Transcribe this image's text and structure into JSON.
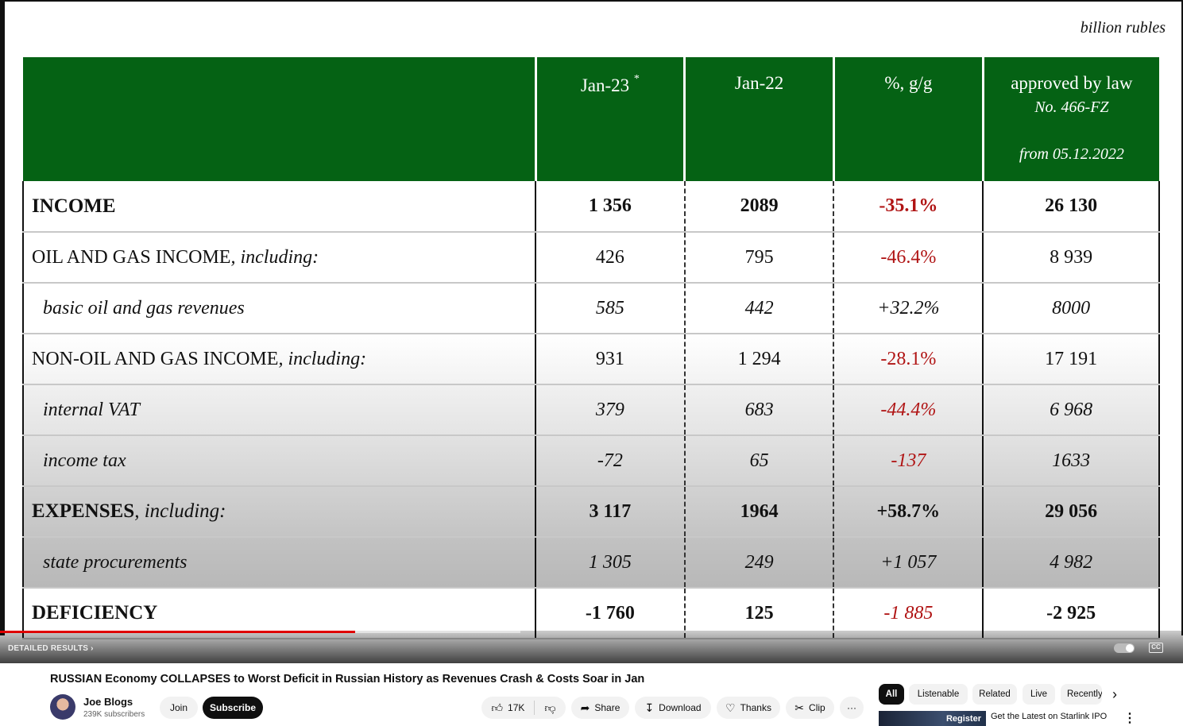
{
  "slide": {
    "units": "billion rubles",
    "headers": {
      "jan23": "Jan-23",
      "jan23_mark": "*",
      "jan22": "Jan-22",
      "pct": "%, g/g",
      "law": "approved by law",
      "law_no": "No. 466-FZ",
      "law_date": "from 05.12.2022"
    },
    "rows": [
      {
        "label": "INCOME",
        "suffix": "",
        "jan23": "1 356",
        "jan22": "2089",
        "pct": "-35.1%",
        "law": "26 130"
      },
      {
        "label": "OIL AND GAS INCOME",
        "suffix": ", including:",
        "jan23": "426",
        "jan22": "795",
        "pct": "-46.4%",
        "law": "8 939"
      },
      {
        "label": "basic oil and gas revenues",
        "suffix": "",
        "jan23": "585",
        "jan22": "442",
        "pct": "+32.2%",
        "law": "8000"
      },
      {
        "label": "NON-OIL AND GAS INCOME",
        "suffix": ", including:",
        "jan23": "931",
        "jan22": "1 294",
        "pct": "-28.1%",
        "law": "17 191"
      },
      {
        "label": "internal VAT",
        "suffix": "",
        "jan23": "379",
        "jan22": "683",
        "pct": "-44.4%",
        "law": "6 968"
      },
      {
        "label": "income tax",
        "suffix": "",
        "jan23": "-72",
        "jan22": "65",
        "pct": "-137",
        "law": "1633"
      },
      {
        "label": "EXPENSES",
        "suffix": ", including:",
        "jan23": "3 117",
        "jan22": "1964",
        "pct": "+58.7%",
        "law": "29 056"
      },
      {
        "label": "state procurements",
        "suffix": "",
        "jan23": "1 305",
        "jan22": "249",
        "pct": "+1 057",
        "law": "4 982"
      },
      {
        "label": "DEFICIENCY",
        "suffix": "",
        "jan23": "-1 760",
        "jan22": "125",
        "pct": "-1 885",
        "law": "-2 925"
      }
    ]
  },
  "player": {
    "detailed_results": "DETAILED RESULTS",
    "progress_fraction": 0.3,
    "buffered_fraction": 0.44,
    "cc_label": "CC"
  },
  "video": {
    "title": "RUSSIAN Economy COLLAPSES to Worst Deficit in Russian History as Revenues Crash & Costs Soar in Jan",
    "channel": "Joe Blogs",
    "subscribers": "239K subscribers",
    "join": "Join",
    "subscribe": "Subscribe",
    "likes": "17K",
    "share": "Share",
    "download": "Download",
    "thanks": "Thanks",
    "clip": "Clip",
    "more": "···"
  },
  "sidebar": {
    "chips": [
      "All",
      "Listenable",
      "Related",
      "Live",
      "Recently"
    ],
    "rec": {
      "thumb_label": "Register",
      "title": "Get the Latest on Starlink IPO"
    }
  },
  "colors": {
    "header_green": "#056214",
    "negative_red": "#b01414",
    "progress_red": "#e00000"
  }
}
